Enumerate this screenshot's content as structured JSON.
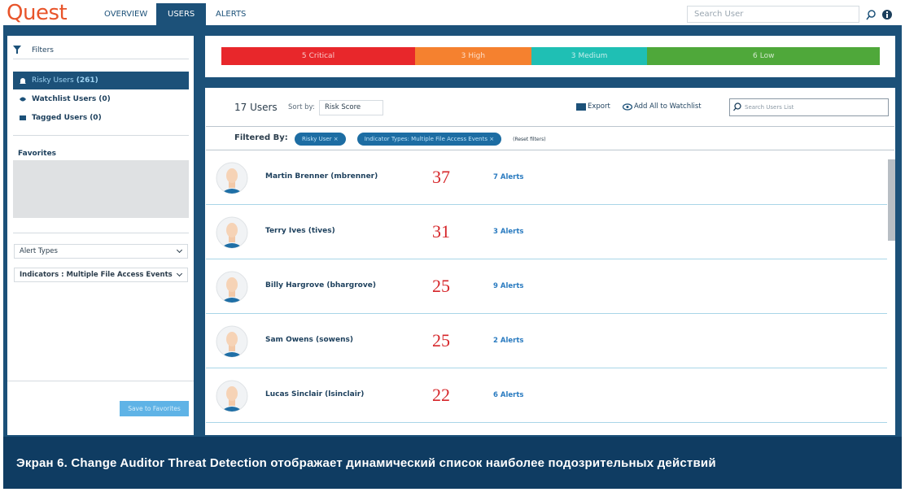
{
  "header": {
    "logo": "Quest",
    "tabs": [
      "OVERVIEW",
      "USERS",
      "ALERTS"
    ],
    "active_tab": 1,
    "search_placeholder": "Search User"
  },
  "sidebar": {
    "title": "Filters",
    "items": [
      {
        "label": "Risky Users",
        "count": "(261)"
      },
      {
        "label": "Watchlist Users",
        "count": "(0)"
      },
      {
        "label": "Tagged Users",
        "count": "(0)"
      }
    ],
    "favorites_title": "Favorites",
    "dropdowns": [
      "Alert Types",
      "Indicators : Multiple File Access Events"
    ],
    "save_button": "Save to Favorites"
  },
  "severity": [
    {
      "count": 5,
      "label": "Critical",
      "color": "#e8272b"
    },
    {
      "count": 3,
      "label": "High",
      "color": "#f5812f"
    },
    {
      "count": 3,
      "label": "Medium",
      "color": "#1fbfb4"
    },
    {
      "count": 6,
      "label": "Low",
      "color": "#4fa83a"
    }
  ],
  "list": {
    "total": "17 Users",
    "sort_label": "Sort by:",
    "sort_value": "Risk Score",
    "export": "Export",
    "add_watchlist": "Add All to Watchlist",
    "search_placeholder": "Search Users List",
    "filtered_label": "Filtered By:",
    "chips": [
      "Risky User ×",
      "Indicator Types: Multiple File Access Events ×"
    ],
    "reset": "(Reset filters)",
    "users": [
      {
        "name": "Martin Brenner (mbrenner)",
        "score": 37,
        "alerts": "7 Alerts"
      },
      {
        "name": "Terry Ives (tives)",
        "score": 31,
        "alerts": "3 Alerts"
      },
      {
        "name": "Billy Hargrove (bhargrove)",
        "score": 25,
        "alerts": "9 Alerts"
      },
      {
        "name": "Sam Owens (sowens)",
        "score": 25,
        "alerts": "2 Alerts"
      },
      {
        "name": "Lucas Sinclair (lsinclair)",
        "score": 22,
        "alerts": "6 Alerts"
      }
    ]
  },
  "caption": "Экран 6. Change Auditor Threat Detection отображает динамический список наиболее подозрительных действий"
}
